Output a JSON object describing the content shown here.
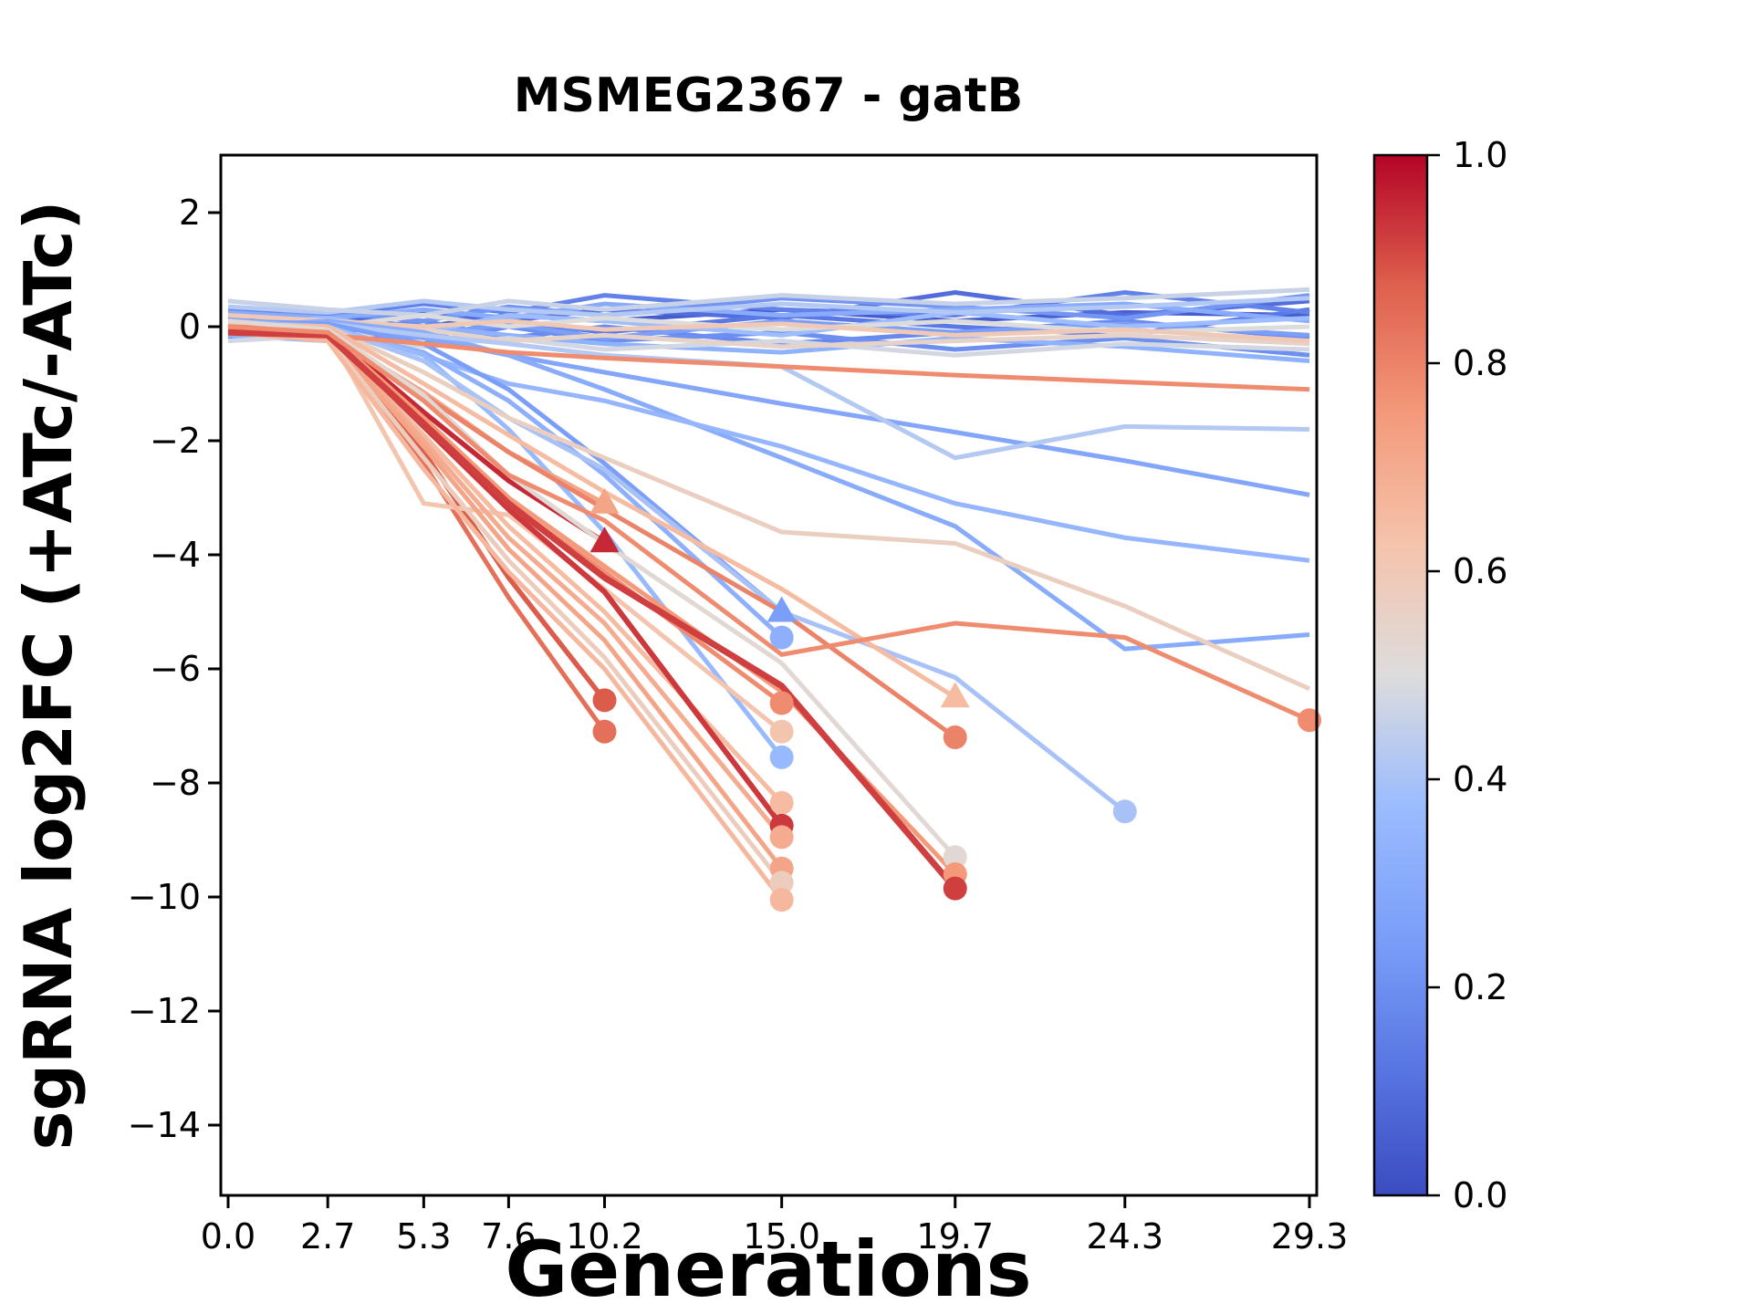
{
  "title": "MSMEG2367 - gatB",
  "xlabel": "Generations",
  "ylabel": "sgRNA log2FC (+ATc/-ATc)",
  "colorbar": {
    "tick_labels": [
      "1.0",
      "0.8",
      "0.6",
      "0.4",
      "0.2",
      "0.0"
    ],
    "tick_values": [
      1.0,
      0.8,
      0.6,
      0.4,
      0.2,
      0.0
    ],
    "cmap": "coolwarm"
  },
  "chart_data": {
    "type": "line",
    "title": "MSMEG2367 - gatB",
    "xlabel": "Generations",
    "ylabel": "sgRNA log2FC (+ATc/-ATc)",
    "grid": false,
    "x": [
      0.0,
      2.7,
      5.3,
      7.6,
      10.2,
      15.0,
      19.7,
      24.3,
      29.3
    ],
    "x_tick_labels": [
      "0.0",
      "2.7",
      "5.3",
      "7.6",
      "10.2",
      "15.0",
      "19.7",
      "24.3",
      "29.3"
    ],
    "y_tick_values": [
      2,
      0,
      -2,
      -4,
      -6,
      -8,
      -10,
      -12,
      -14
    ],
    "y_tick_labels": [
      "2",
      "0",
      "−2",
      "−4",
      "−6",
      "−8",
      "−10",
      "−12",
      "−14"
    ],
    "xlim": [
      -0.2,
      29.5
    ],
    "ylim": [
      -15.25,
      3.0
    ],
    "colormap_stops": [
      [
        0.0,
        "#3B4CC0"
      ],
      [
        0.125,
        "#5977E3"
      ],
      [
        0.25,
        "#7B9FF9"
      ],
      [
        0.375,
        "#9BBCFF"
      ],
      [
        0.5,
        "#DDDCDC"
      ],
      [
        0.625,
        "#F5C4AC"
      ],
      [
        0.75,
        "#F49A7B"
      ],
      [
        0.875,
        "#DE604D"
      ],
      [
        1.0,
        "#B40426"
      ]
    ],
    "series": [
      {
        "c": 0.05,
        "lw": 5,
        "marker": null,
        "y": [
          0.1,
          0.15,
          0.0,
          0.2,
          0.1,
          0.3,
          0.1,
          0.25,
          0.2
        ]
      },
      {
        "c": 0.1,
        "lw": 5,
        "marker": null,
        "y": [
          0.2,
          0.1,
          0.25,
          0.1,
          0.3,
          0.15,
          0.6,
          0.2,
          0.45
        ]
      },
      {
        "c": 0.13,
        "lw": 5,
        "marker": null,
        "y": [
          -0.1,
          0.0,
          -0.2,
          0.1,
          -0.1,
          0.2,
          0.0,
          -0.15,
          0.3
        ]
      },
      {
        "c": 0.16,
        "lw": 5,
        "marker": null,
        "y": [
          0.3,
          0.2,
          0.4,
          0.25,
          0.55,
          0.3,
          0.2,
          0.6,
          0.25
        ]
      },
      {
        "c": 0.18,
        "lw": 5,
        "marker": null,
        "y": [
          0.0,
          -0.1,
          0.1,
          -0.2,
          0.0,
          -0.3,
          -0.1,
          0.1,
          -0.2
        ]
      },
      {
        "c": 0.2,
        "lw": 5,
        "marker": null,
        "y": [
          -0.2,
          -0.1,
          -0.3,
          0.0,
          -0.25,
          -0.1,
          -0.4,
          -0.2,
          -0.5
        ]
      },
      {
        "c": 0.22,
        "lw": 5,
        "marker": null,
        "y": [
          0.15,
          0.25,
          0.1,
          0.35,
          0.2,
          0.5,
          0.35,
          0.15,
          0.55
        ]
      },
      {
        "c": 0.25,
        "lw": 5,
        "marker": null,
        "y": [
          -0.05,
          0.05,
          -0.15,
          0.05,
          -0.2,
          0.1,
          -0.1,
          0.05,
          -0.15
        ]
      },
      {
        "c": 0.3,
        "lw": 5,
        "marker": null,
        "y": [
          0.25,
          0.15,
          0.3,
          0.15,
          0.4,
          0.2,
          0.3,
          0.4,
          0.1
        ]
      },
      {
        "c": 0.33,
        "lw": 5,
        "marker": null,
        "y": [
          -0.15,
          -0.25,
          0.0,
          -0.15,
          -0.3,
          -0.45,
          -0.2,
          -0.35,
          -0.6
        ]
      },
      {
        "c": 0.38,
        "lw": 5,
        "marker": null,
        "y": [
          0.05,
          0.15,
          -0.1,
          0.2,
          0.1,
          -0.15,
          0.25,
          0.0,
          0.15
        ]
      },
      {
        "c": 0.42,
        "lw": 5,
        "marker": null,
        "y": [
          0.35,
          0.25,
          0.45,
          0.3,
          0.2,
          0.4,
          0.25,
          0.35,
          0.5
        ]
      },
      {
        "c": 0.46,
        "lw": 5,
        "marker": null,
        "y": [
          0.45,
          0.3,
          0.2,
          0.45,
          0.3,
          0.55,
          0.4,
          0.5,
          0.65
        ]
      },
      {
        "c": 0.48,
        "lw": 5,
        "marker": null,
        "y": [
          -0.25,
          -0.15,
          -0.35,
          -0.2,
          -0.4,
          -0.25,
          -0.5,
          -0.3,
          -0.4
        ]
      },
      {
        "c": 0.5,
        "lw": 5,
        "marker": null,
        "y": [
          0.1,
          0.0,
          0.2,
          0.0,
          0.15,
          -0.05,
          0.1,
          -0.1,
          0.0
        ]
      },
      {
        "c": 0.55,
        "lw": 5,
        "marker": null,
        "y": [
          -0.1,
          -0.2,
          -0.05,
          -0.25,
          -0.15,
          -0.35,
          -0.25,
          -0.15,
          -0.3
        ]
      },
      {
        "c": 0.6,
        "lw": 5,
        "marker": null,
        "y": [
          0.2,
          0.1,
          0.0,
          0.1,
          -0.05,
          0.05,
          -0.15,
          -0.05,
          -0.25
        ]
      },
      {
        "c": 0.28,
        "lw": 5,
        "marker": null,
        "y": [
          0.0,
          0.05,
          -0.2,
          -0.5,
          -0.8,
          -1.35,
          -1.85,
          -2.35,
          -2.95
        ]
      },
      {
        "c": 0.3,
        "lw": 5,
        "marker": null,
        "y": [
          0.0,
          0.1,
          -0.1,
          -0.5,
          -1.1,
          -2.3,
          -3.5,
          -5.65,
          -5.4
        ]
      },
      {
        "c": 0.35,
        "lw": 5,
        "marker": null,
        "y": [
          0.05,
          0.0,
          -0.5,
          -1.0,
          -1.3,
          -2.1,
          -3.1,
          -3.7,
          -4.1
        ]
      },
      {
        "c": 0.42,
        "lw": 5,
        "marker": null,
        "y": [
          0.1,
          0.05,
          -0.15,
          -0.3,
          -0.5,
          -0.7,
          -2.3,
          -1.75,
          -1.8
        ]
      },
      {
        "c": 0.25,
        "lw": 5,
        "marker": "triangle",
        "y": [
          0.1,
          0.05,
          -0.3,
          -1.1,
          -2.4,
          -5.0
        ]
      },
      {
        "c": 0.32,
        "lw": 5,
        "marker": "circle",
        "y": [
          0.0,
          -0.05,
          -0.45,
          -1.3,
          -2.6,
          -5.45
        ]
      },
      {
        "c": 0.36,
        "lw": 5,
        "marker": "circle",
        "y": [
          0.1,
          0.0,
          -0.5,
          -1.8,
          -3.6,
          -7.55
        ]
      },
      {
        "c": 0.4,
        "lw": 5,
        "marker": "circle",
        "y": [
          0.05,
          0.0,
          -0.6,
          -1.6,
          -2.5,
          -5.0,
          -6.15,
          -8.5
        ]
      },
      {
        "c": 0.57,
        "lw": 5,
        "marker": null,
        "y": [
          0.05,
          0.0,
          -0.8,
          -1.6,
          -2.3,
          -3.6,
          -3.8,
          -4.9,
          -6.35
        ]
      },
      {
        "c": 0.78,
        "lw": 5,
        "marker": null,
        "y": [
          -0.05,
          -0.15,
          -0.3,
          -0.45,
          -0.55,
          -0.7,
          -0.85,
          -0.97,
          -1.1
        ]
      },
      {
        "c": 0.95,
        "lw": 5.5,
        "marker": "triangle",
        "y": [
          -0.05,
          -0.08,
          -1.5,
          -2.7,
          -3.78
        ]
      },
      {
        "c": 0.72,
        "lw": 5,
        "marker": "triangle",
        "y": [
          0.0,
          -0.12,
          -1.15,
          -2.2,
          -3.1
        ]
      },
      {
        "c": 0.88,
        "lw": 5.5,
        "marker": "circle",
        "y": [
          -0.1,
          -0.15,
          -2.2,
          -4.4,
          -6.55
        ]
      },
      {
        "c": 0.84,
        "lw": 5,
        "marker": "circle",
        "y": [
          -0.05,
          -0.2,
          -2.4,
          -4.75,
          -7.1
        ]
      },
      {
        "c": 0.78,
        "lw": 5,
        "marker": "circle",
        "y": [
          0.05,
          -0.05,
          -1.7,
          -3.1,
          -4.3,
          -6.6
        ]
      },
      {
        "c": 0.62,
        "lw": 5,
        "marker": "circle",
        "y": [
          0.0,
          -0.1,
          -3.1,
          -3.3,
          -4.6,
          -7.1
        ]
      },
      {
        "c": 0.65,
        "lw": 5,
        "marker": "circle",
        "y": [
          0.0,
          -0.15,
          -1.9,
          -3.5,
          -5.0,
          -8.35
        ]
      },
      {
        "c": 0.93,
        "lw": 6,
        "marker": "circle",
        "y": [
          -0.1,
          -0.1,
          -1.75,
          -3.2,
          -4.65,
          -8.75
        ]
      },
      {
        "c": 0.7,
        "lw": 5,
        "marker": "circle",
        "y": [
          0.05,
          -0.1,
          -2.0,
          -3.7,
          -5.2,
          -8.95
        ]
      },
      {
        "c": 0.72,
        "lw": 5,
        "marker": "circle",
        "y": [
          -0.05,
          -0.15,
          -2.1,
          -3.9,
          -5.5,
          -9.5
        ]
      },
      {
        "c": 0.58,
        "lw": 5,
        "marker": "circle",
        "y": [
          0.0,
          -0.2,
          -2.3,
          -4.1,
          -5.8,
          -9.75
        ]
      },
      {
        "c": 0.66,
        "lw": 5,
        "marker": "circle",
        "y": [
          -0.1,
          -0.25,
          -2.5,
          -4.3,
          -6.0,
          -10.05
        ]
      },
      {
        "c": 0.65,
        "lw": 5,
        "marker": "triangle",
        "y": [
          0.05,
          0.0,
          -1.0,
          -1.9,
          -2.9,
          -4.6,
          -6.5
        ]
      },
      {
        "c": 0.8,
        "lw": 5,
        "marker": "circle",
        "y": [
          0.0,
          -0.05,
          -1.2,
          -2.2,
          -3.2,
          -5.0,
          -7.2
        ]
      },
      {
        "c": 0.52,
        "lw": 5,
        "marker": "circle",
        "y": [
          0.1,
          -0.05,
          -1.2,
          -2.6,
          -3.8,
          -5.9,
          -9.3
        ]
      },
      {
        "c": 0.75,
        "lw": 5,
        "marker": "circle",
        "y": [
          -0.05,
          -0.1,
          -1.6,
          -3.0,
          -4.2,
          -6.4,
          -9.6
        ]
      },
      {
        "c": 0.92,
        "lw": 7,
        "marker": "circle",
        "y": [
          -0.1,
          -0.15,
          -1.7,
          -3.1,
          -4.4,
          -6.3,
          -9.85
        ]
      },
      {
        "c": 0.78,
        "lw": 5,
        "marker": "circle",
        "y": [
          0.0,
          -0.1,
          -1.3,
          -2.6,
          -3.4,
          -5.75,
          -5.2,
          -5.45,
          -6.9
        ]
      }
    ]
  }
}
